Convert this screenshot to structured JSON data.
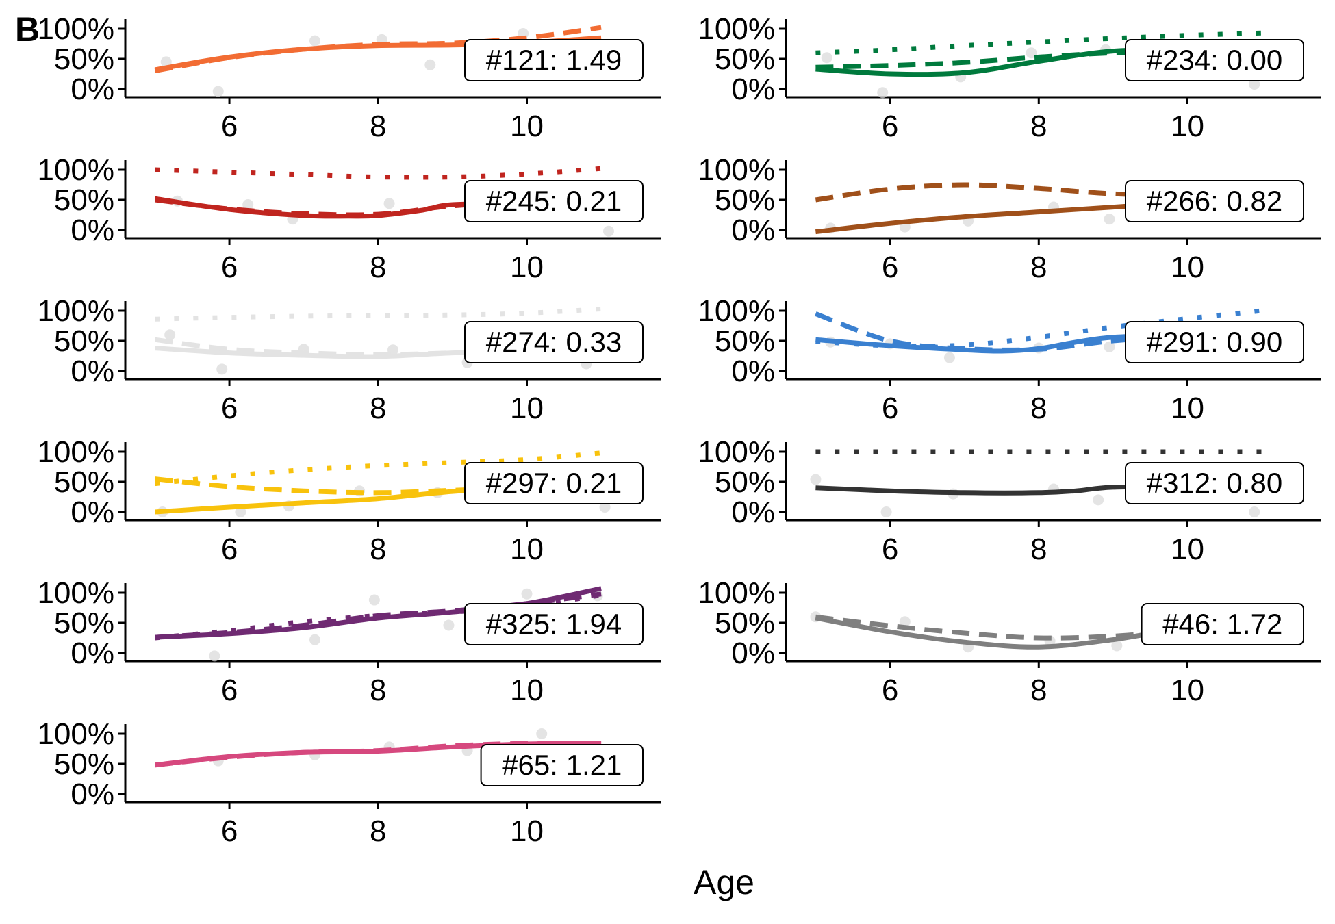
{
  "figure": {
    "panel_letter": "B",
    "xlabel": "Age"
  },
  "chart_data": [
    {
      "type": "line",
      "id": "#121",
      "annotation": "#121: 1.49",
      "color": "#f26c33",
      "xlim": [
        4.6,
        11.8
      ],
      "ylim": [
        -0.12,
        1.18
      ],
      "x_ticks": [
        "6",
        "8",
        "10"
      ],
      "y_ticks": [
        "0%",
        "50%",
        "100%"
      ],
      "series": [
        {
          "style": "solid",
          "x": [
            5,
            6,
            7,
            8,
            9,
            10,
            11
          ],
          "y": [
            0.32,
            0.53,
            0.66,
            0.72,
            0.73,
            0.77,
            0.85
          ]
        },
        {
          "style": "dashed",
          "x": [
            5,
            6,
            7,
            8,
            9,
            10,
            11
          ],
          "y": [
            0.3,
            0.52,
            0.66,
            0.74,
            0.76,
            0.85,
            1.02
          ]
        }
      ],
      "points": {
        "x": [
          5.15,
          5.85,
          7.15,
          8.05,
          8.7,
          9.95
        ],
        "y": [
          0.45,
          -0.04,
          0.8,
          0.82,
          0.4,
          0.92
        ]
      }
    },
    {
      "type": "line",
      "id": "#234",
      "annotation": "#234: 0.00",
      "color": "#007a3d",
      "xlim": [
        4.6,
        11.8
      ],
      "ylim": [
        -0.12,
        1.18
      ],
      "x_ticks": [
        "6",
        "8",
        "10"
      ],
      "y_ticks": [
        "0%",
        "50%",
        "100%"
      ],
      "series": [
        {
          "style": "solid",
          "x": [
            5,
            6,
            7,
            8,
            9,
            10,
            11
          ],
          "y": [
            0.33,
            0.25,
            0.27,
            0.46,
            0.63,
            0.65,
            0.68
          ]
        },
        {
          "style": "dashed",
          "x": [
            5,
            6,
            7,
            8,
            9,
            10,
            11
          ],
          "y": [
            0.36,
            0.39,
            0.44,
            0.53,
            0.6,
            0.63,
            0.67
          ]
        },
        {
          "style": "dotted",
          "x": [
            5,
            6,
            7,
            8,
            9,
            10,
            11
          ],
          "y": [
            0.6,
            0.65,
            0.72,
            0.78,
            0.84,
            0.89,
            0.93
          ]
        }
      ],
      "points": {
        "x": [
          5.15,
          5.9,
          6.95,
          7.9,
          8.9,
          10.9
        ],
        "y": [
          0.52,
          -0.06,
          0.2,
          0.6,
          0.65,
          0.08
        ]
      }
    },
    {
      "type": "line",
      "id": "#245",
      "annotation": "#245: 0.21",
      "color": "#c0251f",
      "xlim": [
        4.6,
        11.8
      ],
      "ylim": [
        -0.12,
        1.18
      ],
      "x_ticks": [
        "6",
        "8",
        "10"
      ],
      "y_ticks": [
        "0%",
        "50%",
        "100%"
      ],
      "series": [
        {
          "style": "solid",
          "x": [
            5,
            6,
            7,
            7.6,
            8,
            8.6,
            9,
            10,
            11
          ],
          "y": [
            0.52,
            0.34,
            0.24,
            0.23,
            0.24,
            0.33,
            0.42,
            0.44,
            0.45
          ]
        },
        {
          "style": "dashed",
          "x": [
            5,
            6,
            7,
            8,
            9,
            10,
            11
          ],
          "y": [
            0.5,
            0.35,
            0.27,
            0.26,
            0.4,
            0.45,
            0.46
          ]
        },
        {
          "style": "dotted",
          "x": [
            5,
            6,
            7,
            8,
            9,
            10,
            11
          ],
          "y": [
            1.0,
            0.96,
            0.92,
            0.88,
            0.88,
            0.93,
            1.02
          ]
        }
      ],
      "points": {
        "x": [
          5.3,
          6.25,
          6.85,
          8.15,
          9.35,
          11.1
        ],
        "y": [
          0.48,
          0.42,
          0.18,
          0.44,
          0.28,
          -0.02
        ]
      }
    },
    {
      "type": "line",
      "id": "#266",
      "annotation": "#266: 0.82",
      "color": "#a0501a",
      "xlim": [
        4.6,
        11.8
      ],
      "ylim": [
        -0.12,
        1.18
      ],
      "x_ticks": [
        "6",
        "8",
        "10"
      ],
      "y_ticks": [
        "0%",
        "50%",
        "100%"
      ],
      "series": [
        {
          "style": "solid",
          "x": [
            5,
            6,
            7,
            8,
            9,
            10,
            11
          ],
          "y": [
            -0.03,
            0.11,
            0.22,
            0.3,
            0.38,
            0.46,
            0.53
          ]
        },
        {
          "style": "dashed",
          "x": [
            5,
            6,
            7,
            8,
            9,
            10,
            11
          ],
          "y": [
            0.5,
            0.68,
            0.75,
            0.69,
            0.6,
            0.58,
            0.58
          ]
        }
      ],
      "points": {
        "x": [
          5.2,
          6.2,
          7.05,
          8.2,
          8.95,
          10.3
        ],
        "y": [
          0.03,
          0.05,
          0.15,
          0.38,
          0.18,
          0.56
        ]
      }
    },
    {
      "type": "line",
      "id": "#274",
      "annotation": "#274: 0.33",
      "color": "#e3e3e3",
      "xlim": [
        4.6,
        11.8
      ],
      "ylim": [
        -0.12,
        1.18
      ],
      "x_ticks": [
        "6",
        "8",
        "10"
      ],
      "y_ticks": [
        "0%",
        "50%",
        "100%"
      ],
      "series": [
        {
          "style": "solid",
          "x": [
            5,
            6,
            7,
            8,
            9,
            10,
            11
          ],
          "y": [
            0.38,
            0.3,
            0.26,
            0.24,
            0.3,
            0.33,
            0.34
          ]
        },
        {
          "style": "dashed",
          "x": [
            5,
            6,
            7,
            8,
            9,
            10,
            11
          ],
          "y": [
            0.52,
            0.36,
            0.3,
            0.27,
            0.3,
            0.33,
            0.34
          ]
        },
        {
          "style": "dotted",
          "x": [
            5,
            6,
            7,
            8,
            9,
            10,
            11
          ],
          "y": [
            0.86,
            0.89,
            0.91,
            0.92,
            0.93,
            0.96,
            1.03
          ]
        }
      ],
      "points": {
        "x": [
          5.2,
          5.9,
          7.0,
          8.2,
          9.2,
          10.8
        ],
        "y": [
          0.6,
          0.03,
          0.36,
          0.35,
          0.14,
          0.12
        ]
      }
    },
    {
      "type": "line",
      "id": "#291",
      "annotation": "#291: 0.90",
      "color": "#3a80d0",
      "xlim": [
        4.6,
        11.8
      ],
      "ylim": [
        -0.12,
        1.18
      ],
      "x_ticks": [
        "6",
        "8",
        "10"
      ],
      "y_ticks": [
        "0%",
        "50%",
        "100%"
      ],
      "series": [
        {
          "style": "solid",
          "x": [
            5,
            6,
            7,
            7.5,
            8,
            8.5,
            9,
            10,
            11
          ],
          "y": [
            0.52,
            0.42,
            0.35,
            0.33,
            0.37,
            0.48,
            0.56,
            0.6,
            0.62
          ]
        },
        {
          "style": "dashed",
          "x": [
            5,
            6,
            7,
            8,
            9,
            10,
            11
          ],
          "y": [
            0.95,
            0.5,
            0.37,
            0.36,
            0.5,
            0.58,
            0.6
          ]
        },
        {
          "style": "dotted",
          "x": [
            5,
            6,
            7,
            8,
            9,
            10,
            11
          ],
          "y": [
            0.49,
            0.42,
            0.43,
            0.56,
            0.73,
            0.87,
            1.0
          ]
        }
      ],
      "points": {
        "x": [
          5.2,
          6.0,
          6.8,
          8.0,
          8.95,
          10.3
        ],
        "y": [
          0.48,
          0.45,
          0.22,
          0.38,
          0.4,
          0.7
        ]
      }
    },
    {
      "type": "line",
      "id": "#297",
      "annotation": "#297: 0.21",
      "color": "#f8c20c",
      "xlim": [
        4.6,
        11.8
      ],
      "ylim": [
        -0.12,
        1.18
      ],
      "x_ticks": [
        "6",
        "8",
        "10"
      ],
      "y_ticks": [
        "0%",
        "50%",
        "100%"
      ],
      "series": [
        {
          "style": "solid",
          "x": [
            5,
            6,
            7,
            8,
            9,
            10,
            11
          ],
          "y": [
            0.0,
            0.08,
            0.15,
            0.22,
            0.34,
            0.4,
            0.42
          ]
        },
        {
          "style": "dashed",
          "x": [
            5,
            6,
            7,
            8,
            9,
            10,
            11
          ],
          "y": [
            0.55,
            0.42,
            0.35,
            0.32,
            0.36,
            0.4,
            0.42
          ]
        },
        {
          "style": "dotted",
          "x": [
            5,
            6,
            7,
            8,
            9,
            10,
            11
          ],
          "y": [
            0.47,
            0.6,
            0.7,
            0.77,
            0.82,
            0.87,
            0.98
          ]
        }
      ],
      "points": {
        "x": [
          5.1,
          6.15,
          6.8,
          7.75,
          8.8,
          11.05
        ],
        "y": [
          0.0,
          0.0,
          0.1,
          0.35,
          0.32,
          0.08
        ]
      }
    },
    {
      "type": "line",
      "id": "#312",
      "annotation": "#312: 0.80",
      "color": "#333333",
      "xlim": [
        4.6,
        11.8
      ],
      "ylim": [
        -0.12,
        1.18
      ],
      "x_ticks": [
        "6",
        "8",
        "10"
      ],
      "y_ticks": [
        "0%",
        "50%",
        "100%"
      ],
      "series": [
        {
          "style": "solid",
          "x": [
            5,
            6,
            7,
            8,
            8.5,
            9,
            10,
            11
          ],
          "y": [
            0.4,
            0.35,
            0.32,
            0.32,
            0.35,
            0.41,
            0.42,
            0.42
          ]
        },
        {
          "style": "dotted",
          "x": [
            5,
            6,
            7,
            8,
            9,
            10,
            11
          ],
          "y": [
            1.0,
            1.0,
            1.0,
            1.0,
            1.0,
            1.0,
            1.0
          ]
        }
      ],
      "points": {
        "x": [
          5.0,
          5.95,
          6.85,
          8.2,
          8.8,
          10.9
        ],
        "y": [
          0.54,
          0.0,
          0.3,
          0.38,
          0.2,
          0.0
        ]
      }
    },
    {
      "type": "line",
      "id": "#325",
      "annotation": "#325: 1.94",
      "color": "#6f2a72",
      "xlim": [
        4.6,
        11.8
      ],
      "ylim": [
        -0.12,
        1.18
      ],
      "x_ticks": [
        "6",
        "8",
        "10"
      ],
      "y_ticks": [
        "0%",
        "50%",
        "100%"
      ],
      "series": [
        {
          "style": "solid",
          "x": [
            5,
            6,
            7,
            8,
            9,
            10,
            11
          ],
          "y": [
            0.26,
            0.32,
            0.42,
            0.58,
            0.68,
            0.82,
            1.07
          ]
        },
        {
          "style": "dashed",
          "x": [
            5,
            6,
            7,
            8,
            9,
            10,
            11
          ],
          "y": [
            0.26,
            0.34,
            0.46,
            0.62,
            0.7,
            0.82,
            0.98
          ]
        },
        {
          "style": "dotted",
          "x": [
            5,
            6,
            7,
            8,
            9,
            10,
            11
          ],
          "y": [
            0.25,
            0.37,
            0.52,
            0.62,
            0.68,
            0.78,
            0.96
          ]
        }
      ],
      "points": {
        "x": [
          5.8,
          7.15,
          7.95,
          8.95,
          10.0,
          10.95
        ],
        "y": [
          -0.05,
          0.22,
          0.88,
          0.46,
          0.98,
          0.95
        ]
      }
    },
    {
      "type": "line",
      "id": "#46",
      "annotation": "#46: 1.72",
      "color": "#7f7f7f",
      "xlim": [
        4.6,
        11.8
      ],
      "ylim": [
        -0.12,
        1.18
      ],
      "x_ticks": [
        "6",
        "8",
        "10"
      ],
      "y_ticks": [
        "0%",
        "50%",
        "100%"
      ],
      "series": [
        {
          "style": "solid",
          "x": [
            5,
            6,
            7,
            8,
            9,
            10,
            11
          ],
          "y": [
            0.58,
            0.35,
            0.18,
            0.1,
            0.22,
            0.42,
            0.5
          ]
        },
        {
          "style": "dashed",
          "x": [
            5,
            6,
            7,
            8,
            9,
            10,
            11
          ],
          "y": [
            0.6,
            0.45,
            0.33,
            0.25,
            0.28,
            0.38,
            0.46
          ]
        }
      ],
      "points": {
        "x": [
          5.0,
          6.2,
          7.05,
          8.15,
          9.05,
          10.3
        ],
        "y": [
          0.6,
          0.52,
          0.1,
          0.2,
          0.12,
          0.3
        ]
      }
    },
    {
      "type": "line",
      "id": "#65",
      "annotation": "#65: 1.21",
      "color": "#d6487e",
      "xlim": [
        4.6,
        11.8
      ],
      "ylim": [
        -0.12,
        1.18
      ],
      "x_ticks": [
        "6",
        "8",
        "10"
      ],
      "y_ticks": [
        "0%",
        "50%",
        "100%"
      ],
      "series": [
        {
          "style": "solid",
          "x": [
            5,
            6,
            7,
            8,
            9,
            10,
            11
          ],
          "y": [
            0.48,
            0.62,
            0.69,
            0.71,
            0.78,
            0.83,
            0.84
          ]
        },
        {
          "style": "dashed",
          "x": [
            5,
            6,
            7,
            8,
            9,
            10,
            11
          ],
          "y": [
            0.48,
            0.61,
            0.69,
            0.72,
            0.8,
            0.84,
            0.84
          ]
        }
      ],
      "points": {
        "x": [
          5.85,
          7.15,
          8.15,
          9.2,
          10.2
        ],
        "y": [
          0.55,
          0.65,
          0.78,
          0.72,
          1.0
        ]
      }
    }
  ]
}
